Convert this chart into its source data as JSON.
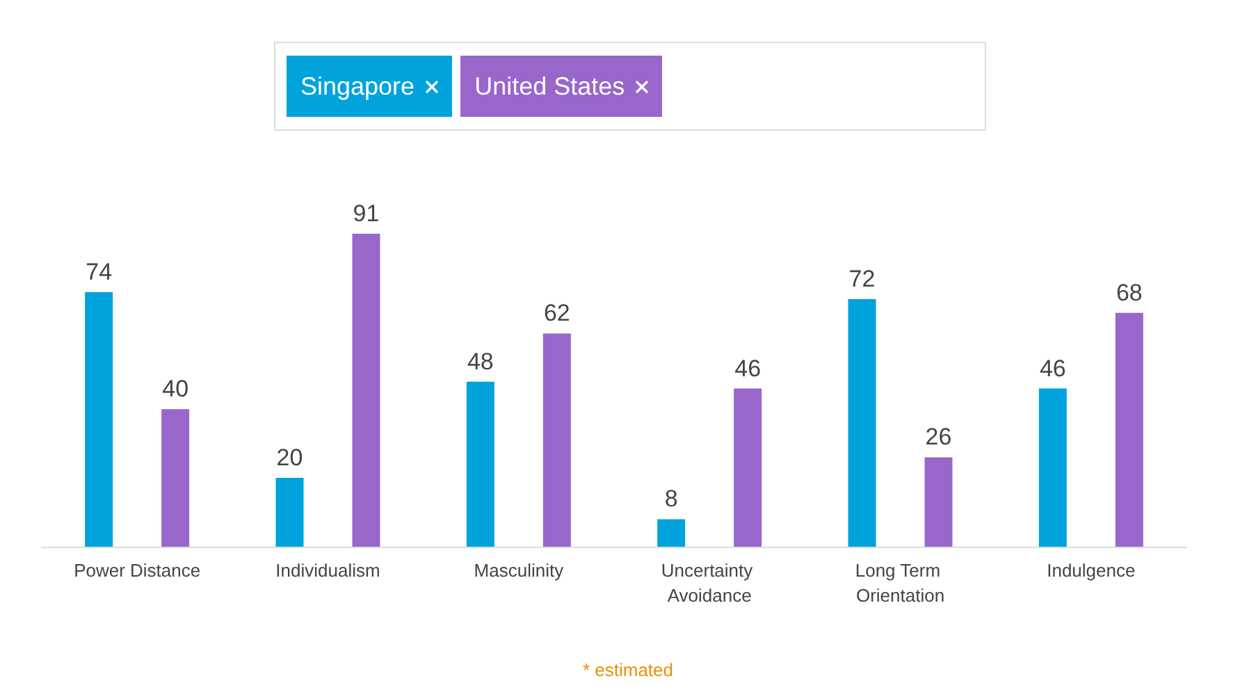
{
  "chart_data": {
    "type": "bar",
    "categories": [
      "Power Distance",
      "Individualism",
      "Masculinity",
      "Uncertainty Avoidance",
      "Long Term Orientation",
      "Indulgence"
    ],
    "series": [
      {
        "name": "Singapore",
        "color": "#00a3dc",
        "values": [
          74,
          20,
          48,
          8,
          72,
          46
        ]
      },
      {
        "name": "United States",
        "color": "#9966cc",
        "values": [
          40,
          91,
          62,
          46,
          26,
          68
        ]
      }
    ],
    "data_labels": true,
    "legend": "top",
    "grid": false,
    "annotations": [
      "* estimated"
    ]
  }
}
